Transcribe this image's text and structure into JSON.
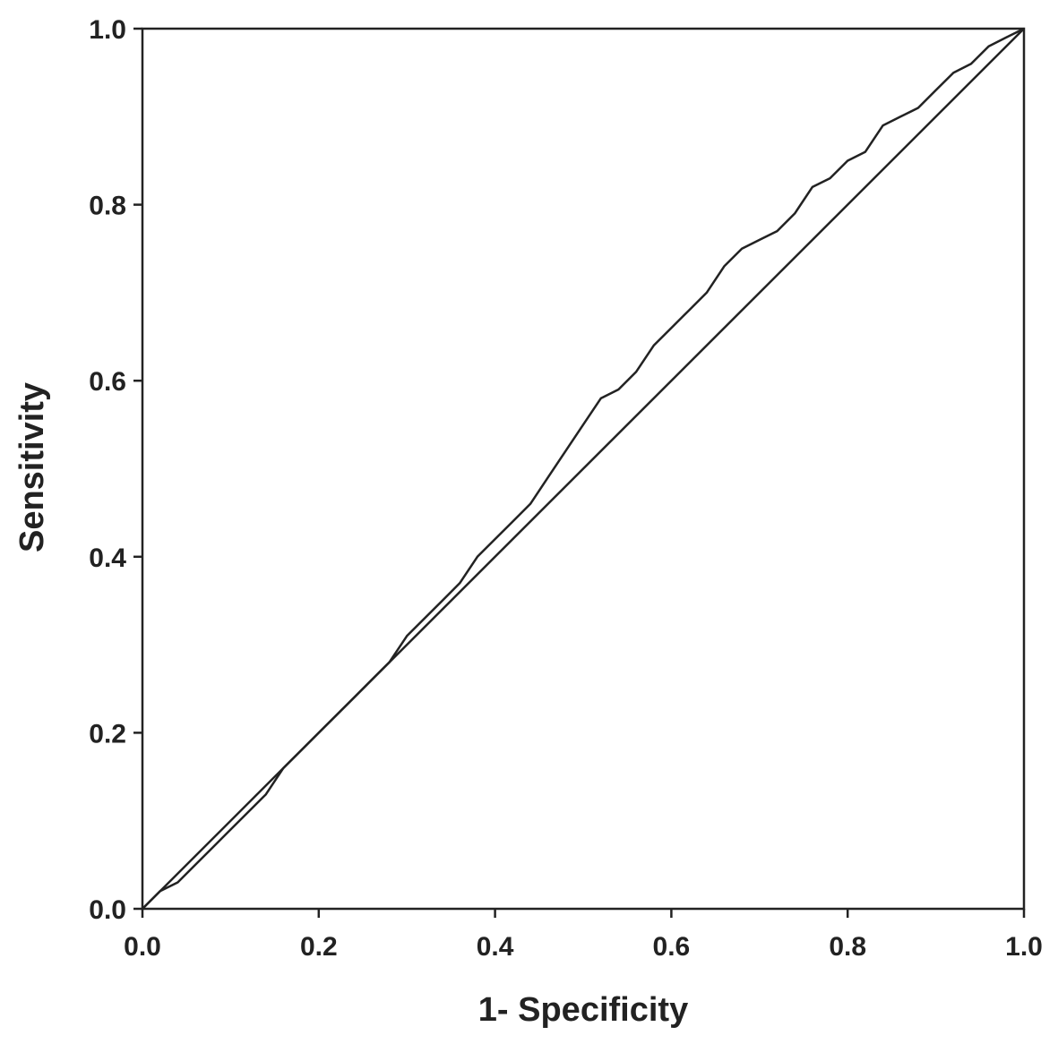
{
  "chart_data": {
    "type": "line",
    "title": "",
    "xlabel": "1- Specificity",
    "ylabel": "Sensitivity",
    "xlim": [
      0.0,
      1.0
    ],
    "ylim": [
      0.0,
      1.0
    ],
    "grid": false,
    "legend": "none",
    "x_ticks": [
      "0.0",
      "0.2",
      "0.4",
      "0.6",
      "0.8",
      "1.0"
    ],
    "y_ticks": [
      "0.0",
      "0.2",
      "0.4",
      "0.6",
      "0.8",
      "1.0"
    ],
    "series": [
      {
        "points": [
          [
            0.0,
            0.0
          ],
          [
            0.02,
            0.02
          ],
          [
            0.04,
            0.03
          ],
          [
            0.06,
            0.05
          ],
          [
            0.08,
            0.07
          ],
          [
            0.1,
            0.09
          ],
          [
            0.12,
            0.11
          ],
          [
            0.14,
            0.13
          ],
          [
            0.16,
            0.16
          ],
          [
            0.18,
            0.18
          ],
          [
            0.2,
            0.2
          ],
          [
            0.22,
            0.22
          ],
          [
            0.24,
            0.24
          ],
          [
            0.26,
            0.26
          ],
          [
            0.28,
            0.28
          ],
          [
            0.3,
            0.31
          ],
          [
            0.32,
            0.33
          ],
          [
            0.34,
            0.35
          ],
          [
            0.36,
            0.37
          ],
          [
            0.38,
            0.4
          ],
          [
            0.4,
            0.42
          ],
          [
            0.42,
            0.44
          ],
          [
            0.44,
            0.46
          ],
          [
            0.46,
            0.49
          ],
          [
            0.48,
            0.52
          ],
          [
            0.5,
            0.55
          ],
          [
            0.52,
            0.58
          ],
          [
            0.54,
            0.59
          ],
          [
            0.56,
            0.61
          ],
          [
            0.58,
            0.64
          ],
          [
            0.6,
            0.66
          ],
          [
            0.62,
            0.68
          ],
          [
            0.64,
            0.7
          ],
          [
            0.66,
            0.73
          ],
          [
            0.68,
            0.75
          ],
          [
            0.7,
            0.76
          ],
          [
            0.72,
            0.77
          ],
          [
            0.74,
            0.79
          ],
          [
            0.76,
            0.82
          ],
          [
            0.78,
            0.83
          ],
          [
            0.8,
            0.85
          ],
          [
            0.82,
            0.86
          ],
          [
            0.84,
            0.89
          ],
          [
            0.86,
            0.9
          ],
          [
            0.88,
            0.91
          ],
          [
            0.9,
            0.93
          ],
          [
            0.92,
            0.95
          ],
          [
            0.94,
            0.96
          ],
          [
            0.96,
            0.98
          ],
          [
            0.98,
            0.99
          ],
          [
            1.0,
            1.0
          ]
        ]
      },
      {
        "points": [
          [
            0.0,
            0.0
          ],
          [
            1.0,
            1.0
          ]
        ]
      }
    ],
    "colors": {
      "line": "#222222",
      "axis": "#222222",
      "background": "#ffffff"
    }
  }
}
